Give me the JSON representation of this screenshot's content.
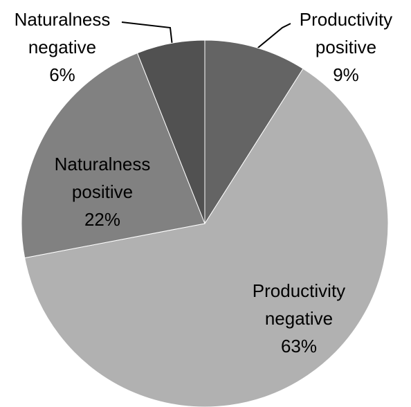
{
  "chart_data": {
    "type": "pie",
    "categories": [
      "Productivity positive",
      "Productivity negative",
      "Naturalness positive",
      "Naturalness negative"
    ],
    "values": [
      9,
      63,
      22,
      6
    ],
    "value_labels": [
      "9%",
      "63%",
      "22%",
      "6%"
    ],
    "colors": [
      "#646464",
      "#b1b1b1",
      "#818181",
      "#515151"
    ]
  }
}
